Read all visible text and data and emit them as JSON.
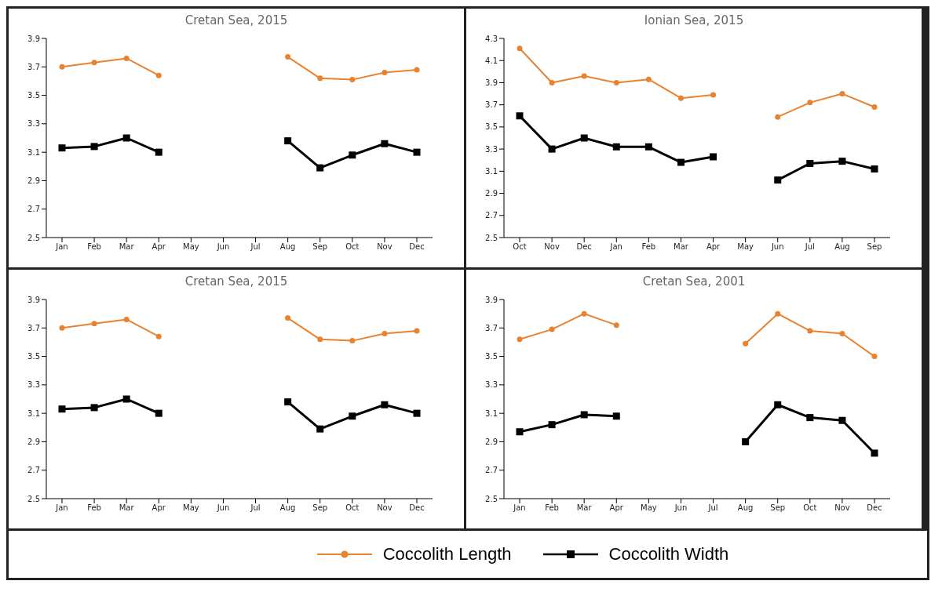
{
  "chart_data": [
    {
      "type": "line",
      "title": "Cretan Sea, 2015",
      "categories": [
        "Jan",
        "Feb",
        "Mar",
        "Apr",
        "May",
        "Jun",
        "Jul",
        "Aug",
        "Sep",
        "Oct",
        "Nov",
        "Dec"
      ],
      "ylim": [
        2.5,
        3.9
      ],
      "yticks": [
        2.5,
        2.7,
        2.9,
        3.1,
        3.3,
        3.5,
        3.7,
        3.9
      ],
      "grid": false,
      "series": [
        {
          "color": "#e8822f",
          "marker": "circle",
          "values": [
            3.7,
            3.73,
            3.76,
            3.64,
            null,
            null,
            null,
            3.77,
            3.62,
            3.61,
            3.66,
            3.68
          ]
        },
        {
          "color": "#000000",
          "marker": "square",
          "values": [
            3.13,
            3.14,
            3.2,
            3.1,
            null,
            null,
            null,
            3.18,
            2.99,
            3.08,
            3.16,
            3.1
          ]
        }
      ]
    },
    {
      "type": "line",
      "title": "Ionian Sea, 2015",
      "categories": [
        "Oct",
        "Nov",
        "Dec",
        "Jan",
        "Feb",
        "Mar",
        "Apr",
        "May",
        "Jun",
        "Jul",
        "Aug",
        "Sep"
      ],
      "ylim": [
        2.5,
        4.3
      ],
      "yticks": [
        2.5,
        2.7,
        2.9,
        3.1,
        3.3,
        3.5,
        3.7,
        3.9,
        4.1,
        4.3
      ],
      "grid": false,
      "series": [
        {
          "color": "#e8822f",
          "marker": "circle",
          "values": [
            4.21,
            3.9,
            3.96,
            3.9,
            3.93,
            3.76,
            3.79,
            null,
            3.59,
            3.72,
            3.8,
            3.68
          ]
        },
        {
          "color": "#000000",
          "marker": "square",
          "values": [
            3.6,
            3.3,
            3.4,
            3.32,
            3.32,
            3.18,
            3.23,
            null,
            3.02,
            3.17,
            3.19,
            3.12
          ]
        }
      ]
    },
    {
      "type": "line",
      "title": "Cretan Sea, 2015",
      "categories": [
        "Jan",
        "Feb",
        "Mar",
        "Apr",
        "May",
        "Jun",
        "Jul",
        "Aug",
        "Sep",
        "Oct",
        "Nov",
        "Dec"
      ],
      "ylim": [
        2.5,
        3.9
      ],
      "yticks": [
        2.5,
        2.7,
        2.9,
        3.1,
        3.3,
        3.5,
        3.7,
        3.9
      ],
      "grid": false,
      "series": [
        {
          "color": "#e8822f",
          "marker": "circle",
          "values": [
            3.7,
            3.73,
            3.76,
            3.64,
            null,
            null,
            null,
            3.77,
            3.62,
            3.61,
            3.66,
            3.68
          ]
        },
        {
          "color": "#000000",
          "marker": "square",
          "values": [
            3.13,
            3.14,
            3.2,
            3.1,
            null,
            null,
            null,
            3.18,
            2.99,
            3.08,
            3.16,
            3.1
          ]
        }
      ]
    },
    {
      "type": "line",
      "title": "Cretan Sea, 2001",
      "categories": [
        "Jan",
        "Feb",
        "Mar",
        "Apr",
        "May",
        "Jun",
        "Jul",
        "Aug",
        "Sep",
        "Oct",
        "Nov",
        "Dec"
      ],
      "ylim": [
        2.5,
        3.9
      ],
      "yticks": [
        2.5,
        2.7,
        2.9,
        3.1,
        3.3,
        3.5,
        3.7,
        3.9
      ],
      "grid": false,
      "legend": "bottom",
      "series": [
        {
          "name": "Coccolith Length",
          "color": "#e8822f",
          "marker": "circle",
          "values": [
            3.62,
            3.69,
            3.8,
            3.72,
            null,
            null,
            null,
            3.59,
            3.8,
            3.68,
            3.66,
            3.5
          ]
        },
        {
          "name": "Coccolith Width",
          "color": "#000000",
          "marker": "square",
          "values": [
            2.97,
            3.02,
            3.09,
            3.08,
            null,
            null,
            null,
            2.9,
            3.16,
            3.07,
            3.05,
            2.82
          ]
        }
      ]
    }
  ]
}
